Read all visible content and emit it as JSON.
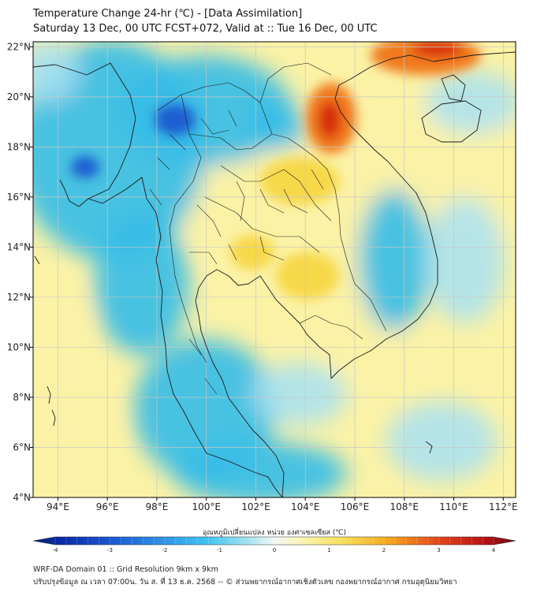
{
  "header": {
    "title_line1": "Temperature Change 24-hr (℃) - [Data Assimilation]",
    "title_line2": "Saturday 13 Dec, 00 UTC FCST+072, Valid at :: Tue 16 Dec, 00 UTC"
  },
  "map": {
    "extent": {
      "lon_min": 93,
      "lon_max": 112.5,
      "lat_min": 4,
      "lat_max": 22.2
    },
    "lon_ticks": [
      "94°E",
      "96°E",
      "98°E",
      "100°E",
      "102°E",
      "104°E",
      "106°E",
      "108°E",
      "110°E",
      "112°E"
    ],
    "lon_values": [
      94,
      96,
      98,
      100,
      102,
      104,
      106,
      108,
      110,
      112
    ],
    "lat_ticks": [
      "4°N",
      "6°N",
      "8°N",
      "10°N",
      "12°N",
      "14°N",
      "16°N",
      "18°N",
      "20°N",
      "22°N"
    ],
    "lat_values": [
      4,
      6,
      8,
      10,
      12,
      14,
      16,
      18,
      20,
      22
    ],
    "field_variable": "24-hr temperature change",
    "colors": {
      "strong_cold": "#1a5fd0",
      "cold": "#35bde8",
      "cool": "#a8e2f2",
      "neutral": "#f4f8f6",
      "warm": "#fbf2a6",
      "warmer": "#f7d84a",
      "hot": "#f07a1c",
      "very_hot": "#d8280f",
      "coastline": "#1a1a1a",
      "grid": "#c7c7c7"
    }
  },
  "colorbar": {
    "title": "อุณหภูมิเปลี่ยนแปลง หน่วย องศาเซลเซียส (℃)",
    "min": -4,
    "max": 4,
    "tick_labels": [
      "-4",
      "-3",
      "-2",
      "-1",
      "0",
      "1",
      "2",
      "3",
      "4"
    ],
    "tick_values": [
      -4,
      -3,
      -2,
      -1,
      0,
      1,
      2,
      3,
      4
    ]
  },
  "footer": {
    "line1": "WRF-DA Domain 01 :: Grid Resolution 9km x 9km",
    "line2": "ปรับปรุงข้อมูล ณ เวลา 07:00น. วัน ส. ที่ 13 ธ.ค. 2568 -- © ส่วนพยากรณ์อากาศเชิงตัวเลข กองพยากรณ์อากาศ กรมอุตุนิยมวิทยา"
  }
}
